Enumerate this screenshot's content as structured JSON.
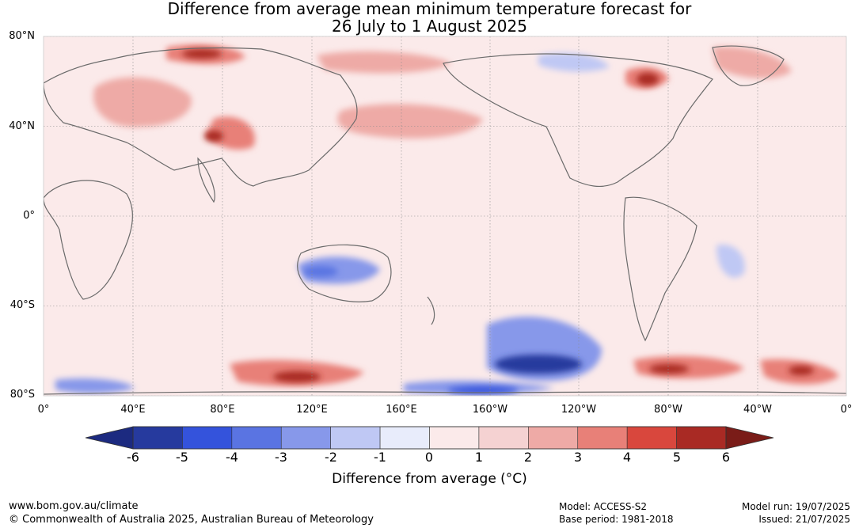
{
  "title": {
    "line1": "Difference from average mean minimum temperature forecast for",
    "line2": "26 July to 1 August 2025"
  },
  "map": {
    "lat_labels": [
      "80°N",
      "40°N",
      "0°",
      "40°S",
      "80°S"
    ],
    "lon_labels": [
      "0°",
      "40°E",
      "80°E",
      "120°E",
      "160°E",
      "160°W",
      "120°W",
      "80°W",
      "40°W",
      "0°"
    ],
    "grid": true
  },
  "colorbar": {
    "ticks": [
      "-6",
      "-5",
      "-4",
      "-3",
      "-2",
      "-1",
      "0",
      "1",
      "2",
      "3",
      "4",
      "5",
      "6"
    ],
    "colors": [
      "#263a9e",
      "#3453dc",
      "#5a74e2",
      "#8798ea",
      "#bfc8f4",
      "#e8ecfb",
      "#fbeaea",
      "#f5d2d2",
      "#eeaaa6",
      "#e88078",
      "#d9473d",
      "#a92a24"
    ],
    "low_extend_color": "#1c2a80",
    "high_extend_color": "#7a1c18",
    "label": "Difference from average (°C)"
  },
  "footer": {
    "website": "www.bom.gov.au/climate",
    "copyright": "© Commonwealth of Australia 2025, Australian Bureau of Meteorology",
    "model": "Model: ACCESS-S2",
    "base_period": "Base period: 1981-2018",
    "model_run": "Model run: 19/07/2025",
    "issued": "Issued: 21/07/2025"
  }
}
